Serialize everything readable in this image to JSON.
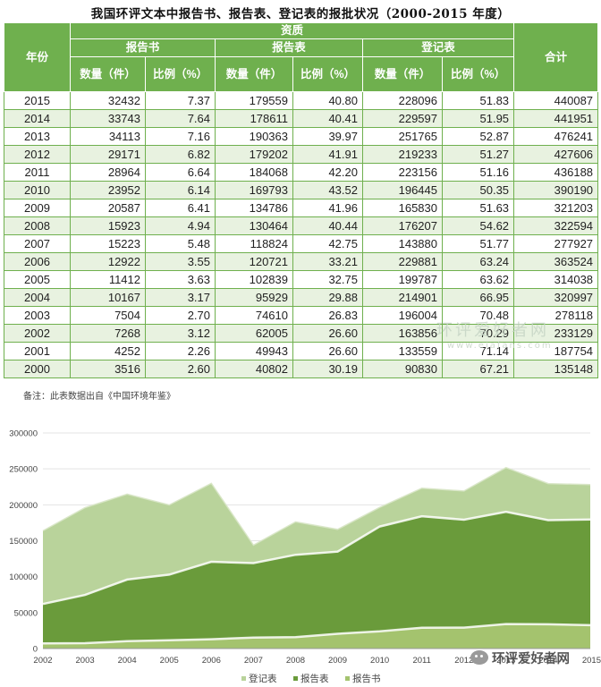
{
  "title": "我国环评文本中报告书、报告表、登记表的报批状况（2000-2015 年度）",
  "table": {
    "header": {
      "year": "年份",
      "group": "资质",
      "report_book": "报告书",
      "report_form": "报告表",
      "registration_form": "登记表",
      "total": "合计",
      "quantity": "数量（件）",
      "ratio": "比例（%）"
    },
    "rows": [
      {
        "year": "2015",
        "book_qty": "32432",
        "book_pct": "7.37",
        "form_qty": "179559",
        "form_pct": "40.80",
        "reg_qty": "228096",
        "reg_pct": "51.83",
        "total": "440087"
      },
      {
        "year": "2014",
        "book_qty": "33743",
        "book_pct": "7.64",
        "form_qty": "178611",
        "form_pct": "40.41",
        "reg_qty": "229597",
        "reg_pct": "51.95",
        "total": "441951"
      },
      {
        "year": "2013",
        "book_qty": "34113",
        "book_pct": "7.16",
        "form_qty": "190363",
        "form_pct": "39.97",
        "reg_qty": "251765",
        "reg_pct": "52.87",
        "total": "476241"
      },
      {
        "year": "2012",
        "book_qty": "29171",
        "book_pct": "6.82",
        "form_qty": "179202",
        "form_pct": "41.91",
        "reg_qty": "219233",
        "reg_pct": "51.27",
        "total": "427606"
      },
      {
        "year": "2011",
        "book_qty": "28964",
        "book_pct": "6.64",
        "form_qty": "184068",
        "form_pct": "42.20",
        "reg_qty": "223156",
        "reg_pct": "51.16",
        "total": "436188"
      },
      {
        "year": "2010",
        "book_qty": "23952",
        "book_pct": "6.14",
        "form_qty": "169793",
        "form_pct": "43.52",
        "reg_qty": "196445",
        "reg_pct": "50.35",
        "total": "390190"
      },
      {
        "year": "2009",
        "book_qty": "20587",
        "book_pct": "6.41",
        "form_qty": "134786",
        "form_pct": "41.96",
        "reg_qty": "165830",
        "reg_pct": "51.63",
        "total": "321203"
      },
      {
        "year": "2008",
        "book_qty": "15923",
        "book_pct": "4.94",
        "form_qty": "130464",
        "form_pct": "40.44",
        "reg_qty": "176207",
        "reg_pct": "54.62",
        "total": "322594"
      },
      {
        "year": "2007",
        "book_qty": "15223",
        "book_pct": "5.48",
        "form_qty": "118824",
        "form_pct": "42.75",
        "reg_qty": "143880",
        "reg_pct": "51.77",
        "total": "277927"
      },
      {
        "year": "2006",
        "book_qty": "12922",
        "book_pct": "3.55",
        "form_qty": "120721",
        "form_pct": "33.21",
        "reg_qty": "229881",
        "reg_pct": "63.24",
        "total": "363524"
      },
      {
        "year": "2005",
        "book_qty": "11412",
        "book_pct": "3.63",
        "form_qty": "102839",
        "form_pct": "32.75",
        "reg_qty": "199787",
        "reg_pct": "63.62",
        "total": "314038"
      },
      {
        "year": "2004",
        "book_qty": "10167",
        "book_pct": "3.17",
        "form_qty": "95929",
        "form_pct": "29.88",
        "reg_qty": "214901",
        "reg_pct": "66.95",
        "total": "320997"
      },
      {
        "year": "2003",
        "book_qty": "7504",
        "book_pct": "2.70",
        "form_qty": "74610",
        "form_pct": "26.83",
        "reg_qty": "196004",
        "reg_pct": "70.48",
        "total": "278118"
      },
      {
        "year": "2002",
        "book_qty": "7268",
        "book_pct": "3.12",
        "form_qty": "62005",
        "form_pct": "26.60",
        "reg_qty": "163856",
        "reg_pct": "70.29",
        "total": "233129"
      },
      {
        "year": "2001",
        "book_qty": "4252",
        "book_pct": "2.26",
        "form_qty": "49943",
        "form_pct": "26.60",
        "reg_qty": "133559",
        "reg_pct": "71.14",
        "total": "187754"
      },
      {
        "year": "2000",
        "book_qty": "3516",
        "book_pct": "2.60",
        "form_qty": "40802",
        "form_pct": "30.19",
        "reg_qty": "90830",
        "reg_pct": "67.21",
        "total": "135148"
      }
    ]
  },
  "note": "备注：此表数据出自《中国环境年鉴》",
  "watermark": {
    "line1": "环评爱好者网",
    "line2": "www.eiafans.com"
  },
  "wechat_badge": "环评爱好者网",
  "colors": {
    "header_bg": "#6fb04e",
    "row_alt": "#e8f2e0",
    "registration_area": "#b9d39b",
    "report_form_area": "#6a9b3b",
    "report_book_area": "#a4c36e"
  },
  "chart_data": {
    "type": "area",
    "stacked": false,
    "x": [
      "2002",
      "2003",
      "2004",
      "2005",
      "2006",
      "2007",
      "2008",
      "2009",
      "2010",
      "2011",
      "2012",
      "2013",
      "2014",
      "2015"
    ],
    "series": [
      {
        "name": "登记表",
        "values": [
          163856,
          196004,
          214901,
          199787,
          229881,
          143880,
          176207,
          165830,
          196445,
          223156,
          219233,
          251765,
          229597,
          228096
        ]
      },
      {
        "name": "报告表",
        "values": [
          62005,
          74610,
          95929,
          102839,
          120721,
          118824,
          130464,
          134786,
          169793,
          184068,
          179202,
          190363,
          178611,
          179559
        ]
      },
      {
        "name": "报告书",
        "values": [
          7268,
          7504,
          10167,
          11412,
          12922,
          15223,
          15923,
          20587,
          23952,
          28964,
          29171,
          34113,
          33743,
          32432
        ]
      }
    ],
    "y_ticks": [
      "0",
      "50000",
      "100000",
      "150000",
      "200000",
      "250000",
      "300000"
    ],
    "ylim": [
      0,
      300000
    ],
    "grid": true,
    "legend": "bottom-center"
  }
}
